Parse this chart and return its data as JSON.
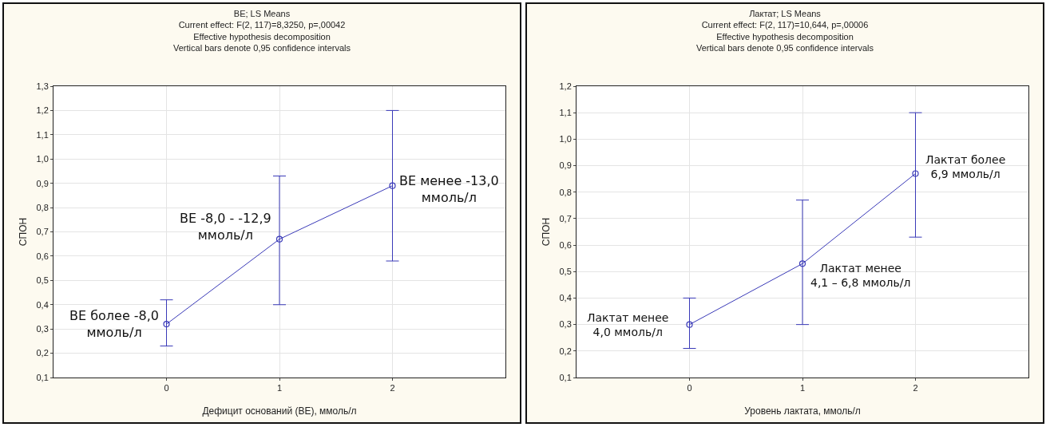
{
  "chart_data": [
    {
      "type": "line",
      "title": "BE; LS Means",
      "subtitle": "Current effect: F(2, 117)=8,3250, p=,00042\nEffective hypothesis decomposition\nVertical bars denote 0,95 confidence intervals",
      "xlabel": "Дефицит оснований (BE), ммоль/л",
      "ylabel": "СПОН",
      "x": [
        0,
        1,
        2
      ],
      "series": [
        {
          "color": "#3a3ab8",
          "values": [
            0.32,
            0.67,
            0.89
          ],
          "errors": [
            [
              0.23,
              0.42
            ],
            [
              0.4,
              0.93
            ],
            [
              0.58,
              1.2
            ]
          ]
        }
      ],
      "xlim": [
        -1,
        3
      ],
      "xticks": [
        0,
        1,
        2
      ],
      "ylim": [
        0.1,
        1.3
      ],
      "yticks": [
        {
          "value": 0.1,
          "label": "0,1"
        },
        {
          "value": 0.2,
          "label": "0,2"
        },
        {
          "value": 0.3,
          "label": "0,3"
        },
        {
          "value": 0.4,
          "label": "0,4"
        },
        {
          "value": 0.5,
          "label": "0,5"
        },
        {
          "value": 0.6,
          "label": "0,6"
        },
        {
          "value": 0.7,
          "label": "0,7"
        },
        {
          "value": 0.8,
          "label": "0,8"
        },
        {
          "value": 0.9,
          "label": "0,9"
        },
        {
          "value": 1.0,
          "label": "1,0"
        },
        {
          "value": 1.1,
          "label": "1,1"
        },
        {
          "value": 1.2,
          "label": "1,2"
        },
        {
          "value": 1.3,
          "label": "1,3"
        }
      ],
      "annotations": [
        {
          "text": "BE более -8,0\nммоль/л",
          "x": 0,
          "y": 0.32
        },
        {
          "text": "BE -8,0 - -12,9\nммоль/л",
          "x": 1,
          "y": 0.67
        },
        {
          "text": "BE менее -13,0\nммоль/л",
          "x": 2,
          "y": 0.89
        }
      ],
      "grid": true,
      "marker": "circle",
      "line_style": "solid"
    },
    {
      "type": "line",
      "title": "Лактат; LS Means",
      "subtitle": "Current effect: F(2, 117)=10,644, p=,00006\nEffective hypothesis decomposition\nVertical bars denote 0,95 confidence intervals",
      "xlabel": "Уровень лактата, ммоль/л",
      "ylabel": "СПОН",
      "x": [
        0,
        1,
        2
      ],
      "series": [
        {
          "color": "#3a3ab8",
          "values": [
            0.3,
            0.53,
            0.87
          ],
          "errors": [
            [
              0.21,
              0.4
            ],
            [
              0.3,
              0.77
            ],
            [
              0.63,
              1.1
            ]
          ]
        }
      ],
      "xlim": [
        -1,
        3
      ],
      "xticks": [
        0,
        1,
        2
      ],
      "ylim": [
        0.1,
        1.2
      ],
      "yticks": [
        {
          "value": 0.1,
          "label": "0,1"
        },
        {
          "value": 0.2,
          "label": "0,2"
        },
        {
          "value": 0.3,
          "label": "0,3"
        },
        {
          "value": 0.4,
          "label": "0,4"
        },
        {
          "value": 0.5,
          "label": "0,5"
        },
        {
          "value": 0.6,
          "label": "0,6"
        },
        {
          "value": 0.7,
          "label": "0,7"
        },
        {
          "value": 0.8,
          "label": "0,8"
        },
        {
          "value": 0.9,
          "label": "0,9"
        },
        {
          "value": 1.0,
          "label": "1,0"
        },
        {
          "value": 1.1,
          "label": "1,1"
        },
        {
          "value": 1.2,
          "label": "1,2"
        }
      ],
      "annotations": [
        {
          "text": "Лактат менее\n4,0 ммоль/л",
          "x": 0,
          "y": 0.3
        },
        {
          "text": "Лактат менее\n4,1 – 6,8 ммоль/л",
          "x": 1,
          "y": 0.53
        },
        {
          "text": "Лактат более\n6,9 ммоль/л",
          "x": 2,
          "y": 0.87
        }
      ],
      "grid": true,
      "marker": "circle",
      "line_style": "solid"
    }
  ]
}
